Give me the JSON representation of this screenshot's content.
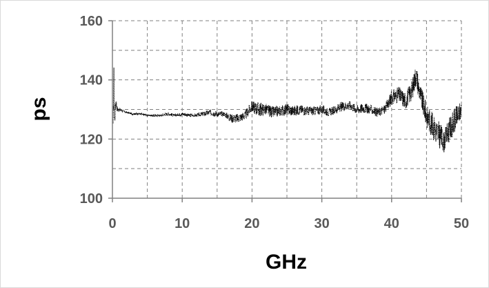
{
  "chart_data": {
    "type": "line",
    "xlabel": "GHz",
    "ylabel": "ps",
    "xlim": [
      0,
      50
    ],
    "ylim": [
      100,
      160
    ],
    "x_ticks": [
      "0",
      "10",
      "20",
      "30",
      "40",
      "50"
    ],
    "y_ticks": [
      "100",
      "120",
      "140",
      "160"
    ],
    "grid": "dashed major and minor",
    "series": [
      {
        "line_style": "dotted black",
        "x": [
          0.1,
          0.2,
          0.3,
          0.5,
          0.7,
          1,
          1.5,
          2,
          3,
          4,
          5,
          6,
          7,
          8,
          9,
          10,
          11,
          12,
          13,
          14,
          15,
          16,
          17,
          18,
          19,
          20,
          21,
          22,
          23,
          24,
          25,
          26,
          27,
          28,
          29,
          30,
          31,
          32,
          33,
          34,
          35,
          36,
          37,
          38,
          39,
          40,
          41,
          42,
          43,
          43.5,
          44,
          45,
          46,
          47,
          47.5,
          48,
          49,
          50
        ],
        "y": [
          123,
          142,
          126,
          133,
          130,
          130,
          129.5,
          129,
          128.5,
          128.5,
          128,
          128,
          128,
          128.5,
          128,
          128.5,
          128,
          128,
          128.5,
          129,
          128.5,
          128.5,
          127,
          127,
          128,
          131,
          130,
          130,
          129,
          129.5,
          130,
          129.5,
          130,
          129.5,
          129.5,
          130,
          129,
          130,
          131,
          131.5,
          130,
          130.5,
          130,
          129,
          130,
          134,
          135,
          133,
          137,
          142,
          136,
          128,
          124,
          121,
          119,
          122,
          126,
          130
        ],
        "spread": [
          3,
          5,
          3,
          2,
          1,
          0.5,
          0.4,
          0.3,
          0.3,
          0.4,
          0.3,
          0.4,
          0.3,
          0.6,
          0.4,
          0.6,
          0.5,
          0.5,
          0.8,
          1,
          1,
          0.8,
          1.5,
          1.6,
          1.5,
          2,
          2.5,
          2,
          2,
          1.8,
          2,
          1.8,
          1.6,
          1.6,
          1.5,
          1.6,
          1.3,
          1.5,
          1.6,
          1.5,
          1.6,
          1.7,
          1.5,
          1.5,
          1.6,
          2.5,
          2.8,
          3,
          3.5,
          4,
          3.5,
          4,
          4.5,
          4.5,
          3.5,
          4,
          4.5,
          3
        ]
      }
    ]
  }
}
